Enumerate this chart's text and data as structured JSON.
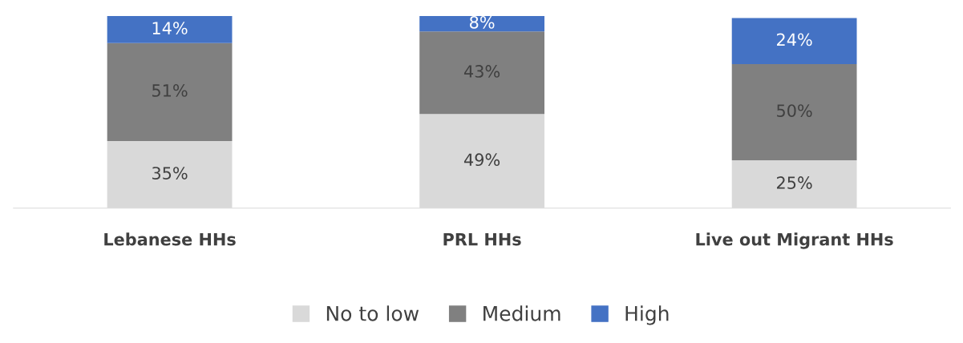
{
  "chart_data": {
    "type": "bar",
    "stacked": true,
    "categories": [
      "Lebanese HHs",
      "PRL HHs",
      "Live out Migrant HHs"
    ],
    "series": [
      {
        "name": "No to low",
        "color": "#d9d9d9",
        "values": [
          35,
          49,
          25
        ],
        "value_labels": [
          "35%",
          "49%",
          "25%"
        ]
      },
      {
        "name": "Medium",
        "color": "#808080",
        "values": [
          51,
          43,
          50
        ],
        "value_labels": [
          "51%",
          "43%",
          "50%"
        ]
      },
      {
        "name": "High",
        "color": "#4472c4",
        "values": [
          14,
          8,
          24
        ],
        "value_labels": [
          "14%",
          "8%",
          "24%"
        ]
      }
    ],
    "legend": "bottom",
    "grid": false
  }
}
